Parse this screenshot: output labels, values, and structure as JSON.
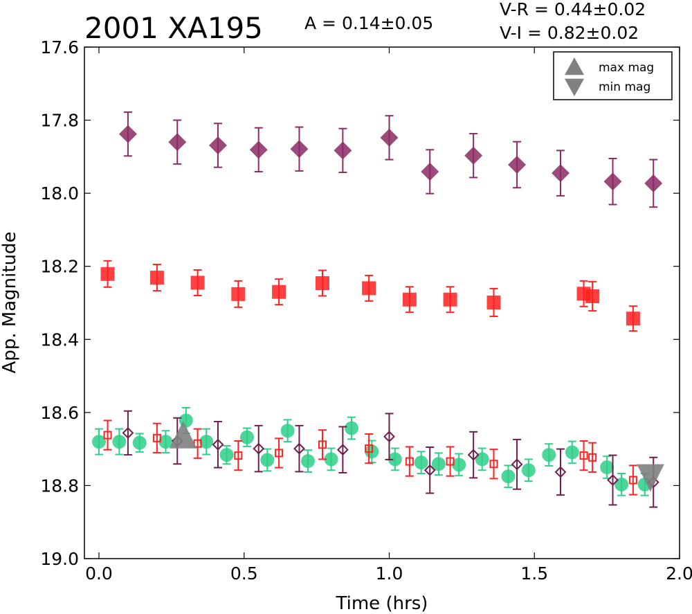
{
  "chart_data": {
    "type": "scatter",
    "title": "2001 XA195",
    "annotations": {
      "amplitude": "A  = 0.14±0.05",
      "v_r": "V-R = 0.44±0.02",
      "v_i": "V-I  = 0.82±0.02"
    },
    "xlabel": "Time (hrs)",
    "ylabel": "App. Magnitude",
    "xlim": [
      -0.05,
      2.0
    ],
    "ylim": [
      19.0,
      17.6
    ],
    "y_inverted": true,
    "x_ticks": [
      "0.0",
      "0.5",
      "1.0",
      "1.5",
      "2.0"
    ],
    "x_tick_values": [
      0.0,
      0.5,
      1.0,
      1.5,
      2.0
    ],
    "y_ticks": [
      "17.6",
      "17.8",
      "18.0",
      "18.2",
      "18.4",
      "18.6",
      "18.8",
      "19.0"
    ],
    "y_tick_values": [
      17.6,
      17.8,
      18.0,
      18.2,
      18.4,
      18.6,
      18.8,
      19.0
    ],
    "grid": false,
    "legend_position": "top-right",
    "legend": [
      {
        "label": "max mag",
        "marker": "triangle-up",
        "color": "#808080"
      },
      {
        "label": "min mag",
        "marker": "triangle-down",
        "color": "#808080"
      }
    ],
    "series": [
      {
        "id": "I-band",
        "marker": "diamond",
        "color": "#8b2a63",
        "filled": true,
        "points": [
          {
            "x": 0.1,
            "y": 17.838,
            "err": 0.06
          },
          {
            "x": 0.27,
            "y": 17.86,
            "err": 0.06
          },
          {
            "x": 0.41,
            "y": 17.869,
            "err": 0.06
          },
          {
            "x": 0.55,
            "y": 17.881,
            "err": 0.06
          },
          {
            "x": 0.69,
            "y": 17.879,
            "err": 0.06
          },
          {
            "x": 0.84,
            "y": 17.883,
            "err": 0.06
          },
          {
            "x": 1.0,
            "y": 17.848,
            "err": 0.06
          },
          {
            "x": 1.14,
            "y": 17.941,
            "err": 0.06
          },
          {
            "x": 1.29,
            "y": 17.897,
            "err": 0.06
          },
          {
            "x": 1.44,
            "y": 17.922,
            "err": 0.063
          },
          {
            "x": 1.59,
            "y": 17.945,
            "err": 0.062
          },
          {
            "x": 1.77,
            "y": 17.968,
            "err": 0.063
          },
          {
            "x": 1.91,
            "y": 17.973,
            "err": 0.065
          }
        ]
      },
      {
        "id": "R-band",
        "marker": "square",
        "color": "#ff2020",
        "filled": true,
        "points": [
          {
            "x": 0.03,
            "y": 18.221,
            "err": 0.036
          },
          {
            "x": 0.2,
            "y": 18.231,
            "err": 0.036
          },
          {
            "x": 0.34,
            "y": 18.245,
            "err": 0.035
          },
          {
            "x": 0.48,
            "y": 18.276,
            "err": 0.036
          },
          {
            "x": 0.62,
            "y": 18.27,
            "err": 0.035
          },
          {
            "x": 0.77,
            "y": 18.246,
            "err": 0.035
          },
          {
            "x": 0.93,
            "y": 18.26,
            "err": 0.035
          },
          {
            "x": 1.07,
            "y": 18.291,
            "err": 0.035
          },
          {
            "x": 1.21,
            "y": 18.291,
            "err": 0.035
          },
          {
            "x": 1.36,
            "y": 18.299,
            "err": 0.038
          },
          {
            "x": 1.67,
            "y": 18.275,
            "err": 0.035
          },
          {
            "x": 1.7,
            "y": 18.282,
            "err": 0.04
          },
          {
            "x": 1.84,
            "y": 18.343,
            "err": 0.034
          }
        ]
      },
      {
        "id": "V-band",
        "marker": "circle",
        "color": "#2ecf88",
        "filled": true,
        "points": [
          {
            "x": 0.0,
            "y": 18.68,
            "err": 0.035
          },
          {
            "x": 0.07,
            "y": 18.68,
            "err": 0.035
          },
          {
            "x": 0.14,
            "y": 18.683,
            "err": 0.025
          },
          {
            "x": 0.23,
            "y": 18.68,
            "err": 0.03
          },
          {
            "x": 0.3,
            "y": 18.622,
            "err": 0.035
          },
          {
            "x": 0.37,
            "y": 18.68,
            "err": 0.035
          },
          {
            "x": 0.44,
            "y": 18.716,
            "err": 0.025
          },
          {
            "x": 0.51,
            "y": 18.668,
            "err": 0.025
          },
          {
            "x": 0.58,
            "y": 18.73,
            "err": 0.03
          },
          {
            "x": 0.65,
            "y": 18.65,
            "err": 0.03
          },
          {
            "x": 0.72,
            "y": 18.733,
            "err": 0.03
          },
          {
            "x": 0.8,
            "y": 18.728,
            "err": 0.03
          },
          {
            "x": 0.87,
            "y": 18.643,
            "err": 0.03
          },
          {
            "x": 0.94,
            "y": 18.707,
            "err": 0.03
          },
          {
            "x": 1.02,
            "y": 18.728,
            "err": 0.03
          },
          {
            "x": 1.11,
            "y": 18.737,
            "err": 0.03
          },
          {
            "x": 1.17,
            "y": 18.741,
            "err": 0.03
          },
          {
            "x": 1.24,
            "y": 18.743,
            "err": 0.03
          },
          {
            "x": 1.32,
            "y": 18.728,
            "err": 0.03
          },
          {
            "x": 1.41,
            "y": 18.775,
            "err": 0.03
          },
          {
            "x": 1.48,
            "y": 18.758,
            "err": 0.03
          },
          {
            "x": 1.55,
            "y": 18.716,
            "err": 0.03
          },
          {
            "x": 1.63,
            "y": 18.709,
            "err": 0.03
          },
          {
            "x": 1.75,
            "y": 18.75,
            "err": 0.03
          },
          {
            "x": 1.8,
            "y": 18.797,
            "err": 0.03
          },
          {
            "x": 1.88,
            "y": 18.797,
            "err": 0.03
          }
        ]
      },
      {
        "id": "R-band-shifted",
        "marker": "square",
        "color": "#ff2020",
        "filled": false,
        "points": [
          {
            "x": 0.03,
            "y": 18.662,
            "err": 0.04
          },
          {
            "x": 0.2,
            "y": 18.67,
            "err": 0.04
          },
          {
            "x": 0.34,
            "y": 18.685,
            "err": 0.04
          },
          {
            "x": 0.48,
            "y": 18.718,
            "err": 0.04
          },
          {
            "x": 0.62,
            "y": 18.711,
            "err": 0.04
          },
          {
            "x": 0.77,
            "y": 18.688,
            "err": 0.04
          },
          {
            "x": 0.93,
            "y": 18.699,
            "err": 0.04
          },
          {
            "x": 1.07,
            "y": 18.734,
            "err": 0.04
          },
          {
            "x": 1.21,
            "y": 18.734,
            "err": 0.04
          },
          {
            "x": 1.36,
            "y": 18.741,
            "err": 0.04
          },
          {
            "x": 1.67,
            "y": 18.718,
            "err": 0.04
          },
          {
            "x": 1.7,
            "y": 18.723,
            "err": 0.04
          },
          {
            "x": 1.84,
            "y": 18.785,
            "err": 0.04
          }
        ]
      },
      {
        "id": "I-band-shifted",
        "marker": "diamond",
        "color": "#6e1d4c",
        "filled": false,
        "points": [
          {
            "x": 0.1,
            "y": 18.656,
            "err": 0.06
          },
          {
            "x": 0.27,
            "y": 18.678,
            "err": 0.063
          },
          {
            "x": 0.41,
            "y": 18.688,
            "err": 0.063
          },
          {
            "x": 0.55,
            "y": 18.699,
            "err": 0.063
          },
          {
            "x": 0.69,
            "y": 18.699,
            "err": 0.063
          },
          {
            "x": 0.84,
            "y": 18.702,
            "err": 0.063
          },
          {
            "x": 1.0,
            "y": 18.666,
            "err": 0.063
          },
          {
            "x": 1.14,
            "y": 18.758,
            "err": 0.063
          },
          {
            "x": 1.29,
            "y": 18.716,
            "err": 0.063
          },
          {
            "x": 1.44,
            "y": 18.742,
            "err": 0.068
          },
          {
            "x": 1.59,
            "y": 18.763,
            "err": 0.063
          },
          {
            "x": 1.77,
            "y": 18.785,
            "err": 0.068
          },
          {
            "x": 1.91,
            "y": 18.791,
            "err": 0.068
          }
        ]
      }
    ],
    "extrema": [
      {
        "type": "max",
        "marker": "triangle-up",
        "x": 0.29,
        "y": 18.665,
        "color": "#808080"
      },
      {
        "type": "min",
        "marker": "triangle-down",
        "x": 1.9,
        "y": 18.775,
        "color": "#808080"
      }
    ]
  }
}
